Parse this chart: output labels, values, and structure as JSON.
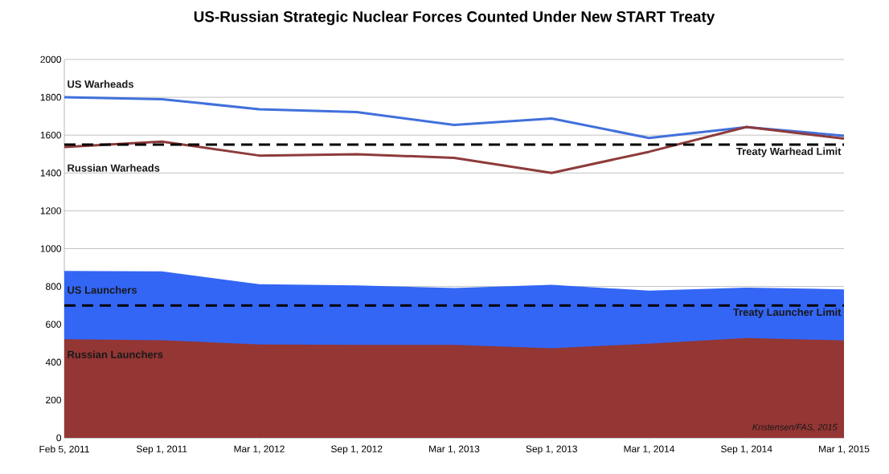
{
  "chart_data": {
    "type": "line",
    "title": "US-Russian Strategic Nuclear Forces Counted Under New START Treaty",
    "categories": [
      "Feb 5, 2011",
      "Sep 1, 2011",
      "Mar 1, 2012",
      "Sep 1, 2012",
      "Mar 1, 2013",
      "Sep 1, 2013",
      "Mar 1, 2014",
      "Sep 1, 2014",
      "Mar 1, 2015"
    ],
    "series": [
      {
        "name": "US Launchers",
        "type": "area",
        "color": "#3366f5",
        "values": [
          882,
          880,
          812,
          806,
          792,
          809,
          778,
          794,
          785
        ]
      },
      {
        "name": "Russian Launchers",
        "type": "area",
        "color": "#943634",
        "values": [
          521,
          516,
          494,
          491,
          492,
          473,
          498,
          528,
          515
        ]
      },
      {
        "name": "US Warheads",
        "color": "#4170dc",
        "values": [
          1800,
          1790,
          1737,
          1722,
          1654,
          1688,
          1585,
          1642,
          1597
        ]
      },
      {
        "name": "Russian Warheads",
        "color": "#8e3b3b",
        "values": [
          1537,
          1566,
          1492,
          1499,
          1480,
          1400,
          1512,
          1643,
          1582
        ]
      }
    ],
    "ylim": [
      0,
      2000
    ],
    "yticks": [
      0,
      200,
      400,
      600,
      800,
      1000,
      1200,
      1400,
      1600,
      1800,
      2000
    ],
    "grid": "y",
    "ref_lines": [
      {
        "axis": "y",
        "value": 1550,
        "label": "Treaty Warhead Limit",
        "color": "#000000",
        "line_style": "dashed"
      },
      {
        "axis": "y",
        "value": 700,
        "label": "Treaty Launcher Limit",
        "color": "#000000",
        "line_style": "dashed"
      }
    ],
    "annotations": [
      "Kristensen/FAS, 2015"
    ]
  }
}
